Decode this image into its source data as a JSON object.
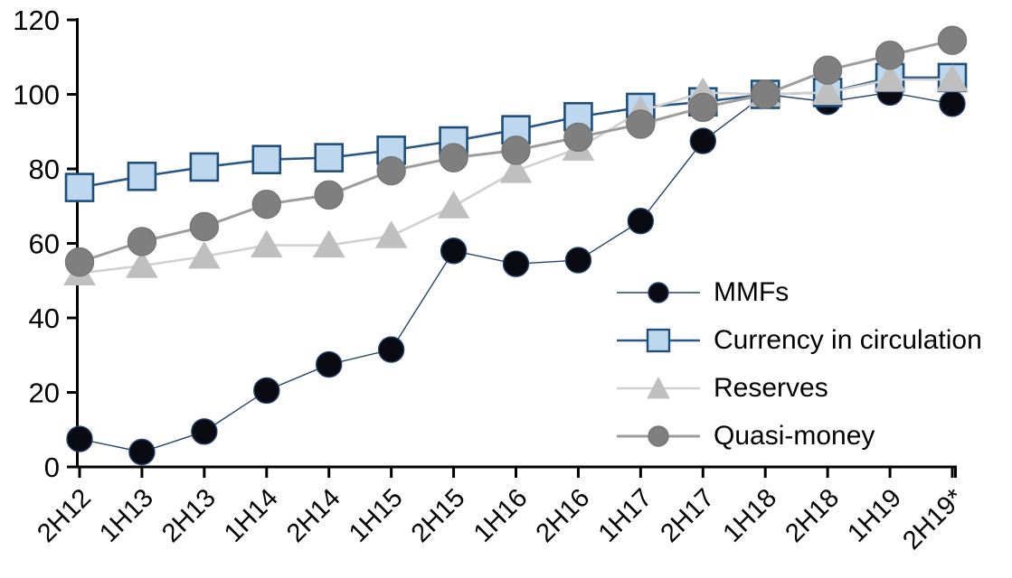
{
  "chart_data": {
    "type": "line",
    "title": "",
    "xlabel": "",
    "ylabel": "",
    "grid": false,
    "legend_position": "center-right",
    "categories": [
      "2H12",
      "1H13",
      "2H13",
      "1H14",
      "2H14",
      "1H15",
      "2H15",
      "1H16",
      "2H16",
      "1H17",
      "2H17",
      "1H18",
      "2H18",
      "1H19",
      "2H19*"
    ],
    "y_axis": {
      "min": 0,
      "max": 120,
      "step": 20,
      "tick_labels": [
        "0",
        "20",
        "40",
        "60",
        "80",
        "100",
        "120"
      ]
    },
    "axis_color": "#000000",
    "series": [
      {
        "name": "MMFs",
        "marker": "circle",
        "marker_fill": "#0a0a12",
        "marker_stroke": "#24426e",
        "line_color": "#24426e",
        "line_width": 1.4,
        "marker_size": 14,
        "values": [
          7.5,
          4,
          9.5,
          20.5,
          27.5,
          31.5,
          58,
          54.5,
          55.5,
          66,
          87.5,
          100,
          98,
          100.5,
          97.5
        ]
      },
      {
        "name": "Currency in circulation",
        "marker": "square",
        "marker_fill": "#bdd7ee",
        "marker_stroke": "#1f4e79",
        "line_color": "#2a5783",
        "line_width": 2.6,
        "marker_size": 15,
        "values": [
          75,
          78,
          80.5,
          82.5,
          83,
          85,
          87.5,
          90.5,
          94,
          96.5,
          98,
          100,
          100.5,
          104.5,
          104.5
        ]
      },
      {
        "name": "Reserves",
        "marker": "triangle",
        "marker_fill": "#bfbfbf",
        "marker_stroke": "#bfbfbf",
        "line_color": "#d0d0d0",
        "line_width": 2.6,
        "marker_size": 17,
        "values": [
          52,
          54,
          56.5,
          59.5,
          59.5,
          62,
          70,
          79.5,
          85.5,
          95.5,
          100.5,
          100,
          100.5,
          104,
          104
        ]
      },
      {
        "name": "Quasi-money",
        "marker": "circle",
        "marker_fill": "#7f7f7f",
        "marker_stroke": "#757575",
        "line_color": "#9d9d9d",
        "line_width": 3,
        "marker_size": 15.5,
        "values": [
          55,
          60.5,
          64.5,
          70.5,
          73,
          79.5,
          83,
          85,
          88.5,
          92,
          96.5,
          100,
          106.5,
          110.5,
          114.5
        ]
      }
    ]
  }
}
